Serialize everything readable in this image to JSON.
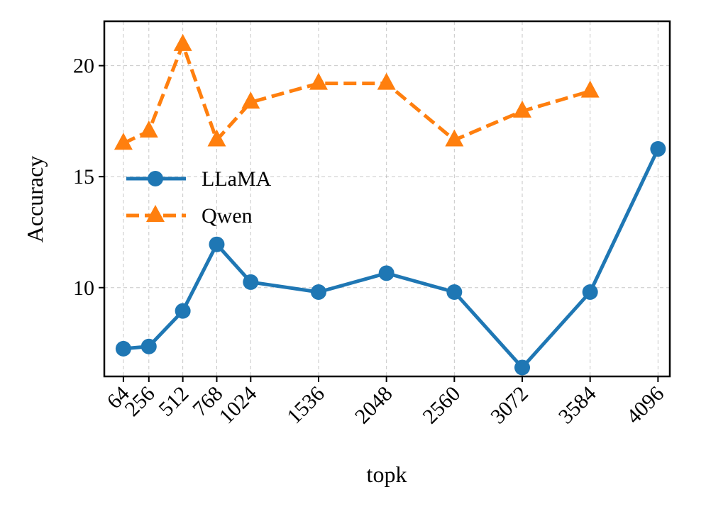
{
  "chart_data": {
    "type": "line",
    "title": "",
    "xlabel": "topk",
    "ylabel": "Accuracy",
    "x": [
      64,
      256,
      512,
      768,
      1024,
      1536,
      2048,
      2560,
      3072,
      3584,
      4096
    ],
    "x_tick_labels": [
      "64",
      "256",
      "512",
      "768",
      "1024",
      "1536",
      "2048",
      "2560",
      "3072",
      "3584",
      "4096"
    ],
    "yticks": [
      10,
      15,
      20
    ],
    "y_tick_labels": [
      "10",
      "15",
      "20"
    ],
    "xlim": [
      -80,
      4185
    ],
    "ylim": [
      6.0,
      22.0
    ],
    "grid": true,
    "legend_position": "center-left",
    "series": [
      {
        "name": "LLaMA",
        "color": "#1f77b4",
        "line_style": "solid",
        "marker": "circle",
        "x": [
          64,
          256,
          512,
          768,
          1024,
          1536,
          2048,
          2560,
          3072,
          3584,
          4096
        ],
        "values": [
          7.25,
          7.35,
          8.95,
          11.95,
          10.25,
          9.8,
          10.65,
          9.8,
          6.4,
          9.8,
          16.25
        ]
      },
      {
        "name": "Qwen",
        "color": "#ff7f0e",
        "line_style": "dashed",
        "marker": "triangle",
        "x": [
          64,
          256,
          512,
          768,
          1024,
          1536,
          2048,
          2560,
          3072,
          3584
        ],
        "values": [
          16.5,
          17.05,
          20.95,
          16.65,
          18.35,
          19.2,
          19.2,
          16.65,
          17.95,
          18.85
        ]
      }
    ]
  }
}
